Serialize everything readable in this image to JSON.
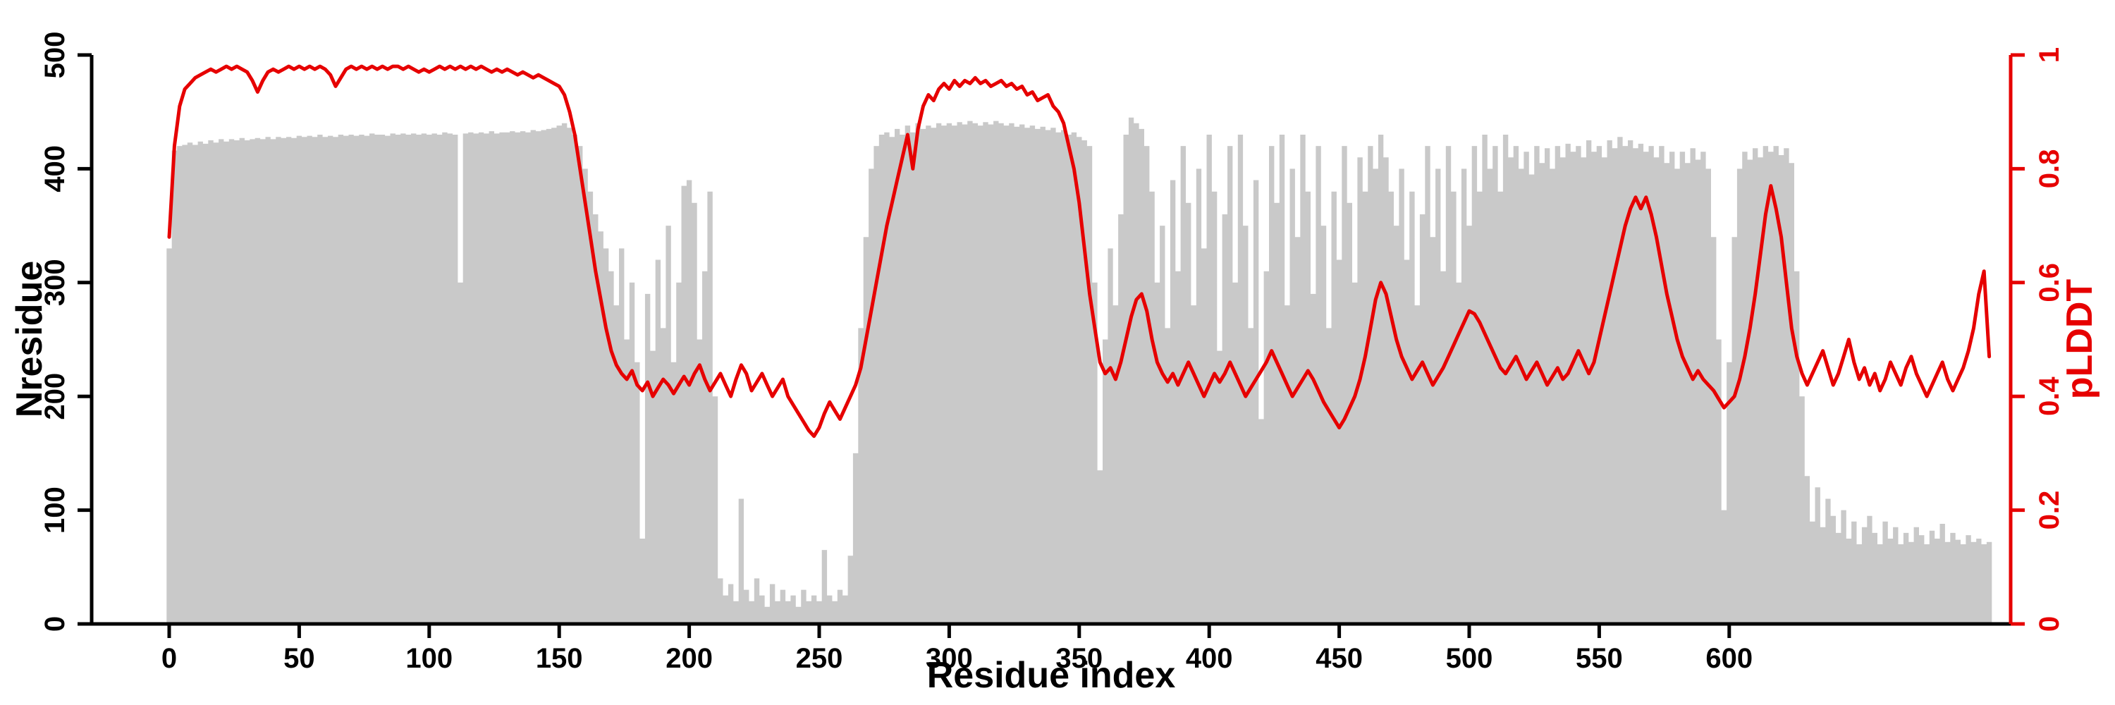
{
  "figure": {
    "background": "#ffffff",
    "axis_color": "#000000",
    "bar_color": "#c9c9c9",
    "line_color": "#e60000"
  },
  "chart_data": {
    "type": "combo",
    "subtypes": [
      "bar",
      "line"
    ],
    "title": "",
    "xlabel": "Residue index",
    "ylabel_left": "Nresidue",
    "ylabel_right": "pLDDT",
    "xlim": [
      0,
      710
    ],
    "ylim_left": [
      0,
      500
    ],
    "ylim_right": [
      0,
      1
    ],
    "grid": false,
    "legend": "none",
    "x_ticks": {
      "values": [
        0,
        50,
        100,
        150,
        200,
        250,
        300,
        350,
        400,
        450,
        500,
        550,
        600
      ],
      "labels": [
        "0",
        "50",
        "100",
        "150",
        "200",
        "250",
        "300",
        "350",
        "400",
        "450",
        "500",
        "550",
        "600"
      ]
    },
    "y_ticks_left": {
      "values": [
        0,
        100,
        200,
        300,
        400,
        500
      ],
      "labels": [
        "0",
        "100",
        "200",
        "300",
        "400",
        "500"
      ]
    },
    "y_ticks_right": {
      "values": [
        0,
        0.2,
        0.4,
        0.6,
        0.8,
        1
      ],
      "labels": [
        "0",
        "0.2",
        "0.4",
        "0.6",
        "0.8",
        "1"
      ]
    },
    "x_start": 0,
    "x_step": 2,
    "series": [
      {
        "name": "Nresidue",
        "type": "bar",
        "axis": "left",
        "color": "#c9c9c9",
        "values": [
          330,
          416,
          420,
          421,
          423,
          421,
          424,
          422,
          425,
          423,
          426,
          424,
          426,
          425,
          427,
          425,
          426,
          427,
          426,
          428,
          426,
          428,
          427,
          428,
          427,
          429,
          428,
          429,
          428,
          430,
          428,
          429,
          428,
          430,
          429,
          430,
          429,
          430,
          429,
          431,
          430,
          430,
          429,
          431,
          430,
          431,
          430,
          431,
          430,
          431,
          430,
          431,
          430,
          432,
          431,
          430,
          300,
          431,
          432,
          431,
          432,
          431,
          433,
          431,
          432,
          432,
          433,
          432,
          433,
          432,
          434,
          433,
          434,
          435,
          436,
          438,
          440,
          436,
          430,
          420,
          400,
          380,
          360,
          345,
          330,
          310,
          280,
          330,
          250,
          300,
          230,
          75,
          290,
          240,
          320,
          260,
          350,
          230,
          300,
          385,
          390,
          370,
          250,
          310,
          380,
          200,
          40,
          25,
          35,
          20,
          110,
          30,
          20,
          40,
          25,
          15,
          35,
          20,
          30,
          20,
          25,
          15,
          30,
          20,
          25,
          20,
          65,
          25,
          20,
          30,
          25,
          60,
          150,
          260,
          340,
          400,
          420,
          430,
          432,
          428,
          435,
          430,
          438,
          432,
          440,
          435,
          438,
          436,
          440,
          438,
          440,
          438,
          441,
          439,
          442,
          440,
          438,
          441,
          439,
          442,
          440,
          438,
          440,
          437,
          439,
          436,
          438,
          435,
          437,
          434,
          436,
          432,
          434,
          430,
          432,
          428,
          425,
          420,
          300,
          135,
          250,
          330,
          280,
          360,
          430,
          445,
          440,
          435,
          420,
          380,
          300,
          350,
          260,
          390,
          310,
          420,
          370,
          280,
          400,
          330,
          430,
          380,
          240,
          360,
          420,
          300,
          430,
          350,
          260,
          390,
          180,
          310,
          420,
          370,
          430,
          280,
          400,
          340,
          430,
          380,
          290,
          420,
          350,
          260,
          380,
          320,
          420,
          370,
          300,
          410,
          380,
          420,
          400,
          430,
          410,
          380,
          350,
          400,
          320,
          380,
          280,
          360,
          420,
          340,
          400,
          310,
          420,
          380,
          300,
          400,
          350,
          420,
          380,
          430,
          400,
          420,
          380,
          430,
          410,
          420,
          400,
          415,
          395,
          420,
          405,
          418,
          400,
          420,
          410,
          422,
          415,
          420,
          410,
          425,
          415,
          420,
          410,
          425,
          418,
          428,
          420,
          425,
          418,
          422,
          415,
          420,
          410,
          420,
          405,
          415,
          400,
          415,
          405,
          418,
          408,
          415,
          400,
          340,
          250,
          100,
          230,
          340,
          400,
          415,
          408,
          418,
          410,
          420,
          415,
          420,
          412,
          418,
          405,
          310,
          200,
          130,
          90,
          120,
          85,
          110,
          95,
          80,
          100,
          75,
          90,
          70,
          85,
          95,
          80,
          70,
          90,
          75,
          85,
          70,
          80,
          72,
          85,
          78,
          70,
          82,
          75,
          88,
          72,
          80,
          74,
          70,
          78,
          72,
          75,
          70,
          72
        ]
      },
      {
        "name": "pLDDT",
        "type": "line",
        "axis": "right",
        "color": "#e60000",
        "values": [
          0.68,
          0.84,
          0.91,
          0.94,
          0.95,
          0.96,
          0.965,
          0.97,
          0.975,
          0.97,
          0.975,
          0.98,
          0.975,
          0.98,
          0.975,
          0.97,
          0.955,
          0.935,
          0.955,
          0.97,
          0.975,
          0.97,
          0.975,
          0.98,
          0.975,
          0.98,
          0.975,
          0.98,
          0.975,
          0.98,
          0.975,
          0.965,
          0.945,
          0.96,
          0.975,
          0.98,
          0.975,
          0.98,
          0.975,
          0.98,
          0.975,
          0.98,
          0.975,
          0.98,
          0.98,
          0.975,
          0.98,
          0.975,
          0.97,
          0.975,
          0.97,
          0.975,
          0.98,
          0.975,
          0.98,
          0.975,
          0.98,
          0.975,
          0.98,
          0.975,
          0.98,
          0.975,
          0.97,
          0.975,
          0.97,
          0.975,
          0.97,
          0.965,
          0.97,
          0.965,
          0.96,
          0.965,
          0.96,
          0.955,
          0.95,
          0.945,
          0.93,
          0.9,
          0.86,
          0.8,
          0.74,
          0.68,
          0.62,
          0.57,
          0.52,
          0.48,
          0.455,
          0.44,
          0.43,
          0.445,
          0.42,
          0.41,
          0.425,
          0.4,
          0.415,
          0.43,
          0.42,
          0.405,
          0.42,
          0.435,
          0.42,
          0.44,
          0.455,
          0.43,
          0.41,
          0.425,
          0.44,
          0.42,
          0.4,
          0.43,
          0.455,
          0.44,
          0.41,
          0.425,
          0.44,
          0.42,
          0.4,
          0.415,
          0.43,
          0.4,
          0.385,
          0.37,
          0.355,
          0.34,
          0.33,
          0.345,
          0.37,
          0.39,
          0.375,
          0.36,
          0.38,
          0.4,
          0.42,
          0.45,
          0.5,
          0.55,
          0.6,
          0.65,
          0.7,
          0.74,
          0.78,
          0.82,
          0.86,
          0.8,
          0.87,
          0.91,
          0.93,
          0.92,
          0.94,
          0.95,
          0.94,
          0.955,
          0.945,
          0.955,
          0.95,
          0.96,
          0.95,
          0.955,
          0.945,
          0.95,
          0.955,
          0.945,
          0.95,
          0.94,
          0.945,
          0.93,
          0.935,
          0.92,
          0.925,
          0.93,
          0.91,
          0.9,
          0.88,
          0.84,
          0.8,
          0.74,
          0.66,
          0.58,
          0.52,
          0.46,
          0.44,
          0.45,
          0.43,
          0.46,
          0.5,
          0.54,
          0.57,
          0.58,
          0.55,
          0.5,
          0.46,
          0.44,
          0.425,
          0.44,
          0.42,
          0.44,
          0.46,
          0.44,
          0.42,
          0.4,
          0.42,
          0.44,
          0.425,
          0.44,
          0.46,
          0.44,
          0.42,
          0.4,
          0.415,
          0.43,
          0.445,
          0.46,
          0.48,
          0.46,
          0.44,
          0.42,
          0.4,
          0.415,
          0.43,
          0.445,
          0.43,
          0.41,
          0.39,
          0.375,
          0.36,
          0.345,
          0.36,
          0.38,
          0.4,
          0.43,
          0.47,
          0.52,
          0.57,
          0.6,
          0.58,
          0.54,
          0.5,
          0.47,
          0.45,
          0.43,
          0.445,
          0.46,
          0.44,
          0.42,
          0.435,
          0.45,
          0.47,
          0.49,
          0.51,
          0.53,
          0.55,
          0.545,
          0.53,
          0.51,
          0.49,
          0.47,
          0.45,
          0.44,
          0.455,
          0.47,
          0.45,
          0.43,
          0.445,
          0.46,
          0.44,
          0.42,
          0.435,
          0.45,
          0.43,
          0.44,
          0.46,
          0.48,
          0.46,
          0.44,
          0.46,
          0.5,
          0.54,
          0.58,
          0.62,
          0.66,
          0.7,
          0.73,
          0.75,
          0.73,
          0.75,
          0.72,
          0.68,
          0.63,
          0.58,
          0.54,
          0.5,
          0.47,
          0.45,
          0.43,
          0.445,
          0.43,
          0.42,
          0.41,
          0.395,
          0.38,
          0.39,
          0.4,
          0.43,
          0.47,
          0.52,
          0.58,
          0.65,
          0.72,
          0.77,
          0.73,
          0.68,
          0.6,
          0.52,
          0.47,
          0.44,
          0.42,
          0.44,
          0.46,
          0.48,
          0.45,
          0.42,
          0.44,
          0.47,
          0.5,
          0.46,
          0.43,
          0.45,
          0.42,
          0.44,
          0.41,
          0.43,
          0.46,
          0.44,
          0.42,
          0.45,
          0.47,
          0.44,
          0.42,
          0.4,
          0.42,
          0.44,
          0.46,
          0.43,
          0.41,
          0.43,
          0.45,
          0.48,
          0.52,
          0.58,
          0.62,
          0.47
        ]
      }
    ]
  }
}
